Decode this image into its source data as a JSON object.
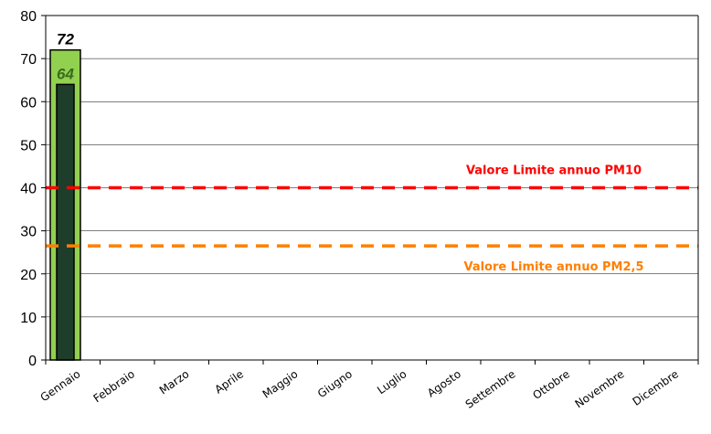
{
  "chart_data": {
    "type": "bar",
    "categories": [
      "Gennaio",
      "Febbraio",
      "Marzo",
      "Aprile",
      "Maggio",
      "Giugno",
      "Luglio",
      "Agosto",
      "Settembre",
      "Ottobre",
      "Novembre",
      "Dicembre"
    ],
    "series": [
      {
        "values": [
          72,
          null,
          null,
          null,
          null,
          null,
          null,
          null,
          null,
          null,
          null,
          null
        ],
        "color": "#92d050"
      },
      {
        "values": [
          64,
          null,
          null,
          null,
          null,
          null,
          null,
          null,
          null,
          null,
          null,
          null
        ],
        "color": "#1e3d2a"
      }
    ],
    "ylim": [
      0,
      80
    ],
    "yticks": [
      0,
      10,
      20,
      30,
      40,
      50,
      60,
      70,
      80
    ],
    "grid": true,
    "reference_lines": [
      {
        "label": "Valore Limite annuo PM10",
        "value": 40,
        "color": "#ff0000"
      },
      {
        "label": "Valore Limite annuo PM2,5",
        "value": 26.5,
        "color": "#ff7f00"
      }
    ]
  }
}
